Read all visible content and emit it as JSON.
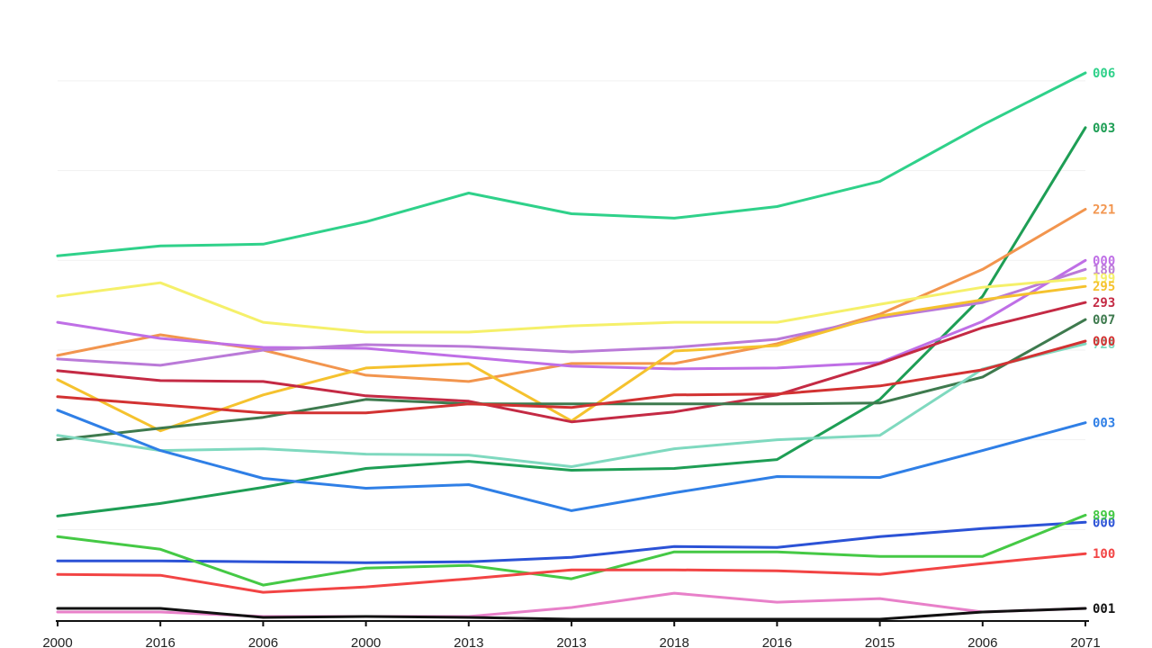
{
  "chart_data": {
    "type": "line",
    "title": "",
    "xlabel": "",
    "ylabel": "",
    "categories": [
      "2000",
      "2016",
      "2006",
      "2000",
      "2013",
      "2013",
      "2018",
      "2016",
      "2015",
      "2006",
      "2071"
    ],
    "ylim": [
      0,
      620
    ],
    "grid": true,
    "legend": "none (labels at line ends)",
    "series": [
      {
        "color": "#2fd18a",
        "end_label": "006",
        "values": [
          405,
          416,
          418,
          443,
          475,
          452,
          447,
          460,
          488,
          551,
          609
        ]
      },
      {
        "color": "#1e9e55",
        "end_label": "003",
        "values": [
          115,
          129,
          147,
          168,
          176,
          166,
          168,
          178,
          245,
          360,
          548
        ]
      },
      {
        "color": "#f2954e",
        "end_label": "221",
        "values": [
          294,
          317,
          300,
          272,
          265,
          285,
          285,
          307,
          340,
          390,
          457
        ]
      },
      {
        "color": "#bf6fe6",
        "end_label": "000",
        "values": [
          331,
          313,
          303,
          302,
          292,
          282,
          279,
          280,
          286,
          332,
          400
        ]
      },
      {
        "color": "#ba7ad8",
        "end_label": "180",
        "values": [
          290,
          283,
          300,
          306,
          304,
          298,
          303,
          312,
          336,
          353,
          390
        ]
      },
      {
        "color": "#f5f06a",
        "end_label": "199",
        "values": [
          360,
          375,
          331,
          320,
          320,
          327,
          331,
          331,
          351,
          370,
          380
        ]
      },
      {
        "color": "#f5c22e",
        "end_label": "295",
        "values": [
          267,
          210,
          250,
          280,
          285,
          221,
          299,
          305,
          338,
          356,
          371
        ]
      },
      {
        "color": "#c42a44",
        "end_label": "293",
        "values": [
          277,
          266,
          265,
          249,
          243,
          220,
          231,
          250,
          285,
          325,
          353
        ]
      },
      {
        "color": "#3e7a4e",
        "end_label": "007",
        "values": [
          200,
          213,
          225,
          245,
          240,
          240,
          240,
          240,
          241,
          270,
          334
        ]
      },
      {
        "color": "#7fd9bf",
        "end_label": "728",
        "values": [
          205,
          188,
          190,
          184,
          183,
          170,
          190,
          200,
          205,
          279,
          307
        ]
      },
      {
        "color": "#d23232",
        "end_label": "000",
        "values": [
          248,
          239,
          230,
          230,
          240,
          236,
          250,
          251,
          260,
          278,
          310
        ]
      },
      {
        "color": "#2f7fe6",
        "end_label": "003",
        "values": [
          233,
          188,
          157,
          146,
          150,
          121,
          141,
          159,
          158,
          188,
          219
        ]
      },
      {
        "color": "#2b52d6",
        "end_label": "000",
        "values": [
          65,
          65,
          64,
          63,
          64,
          69,
          81,
          80,
          92,
          101,
          108
        ]
      },
      {
        "color": "#45c945",
        "end_label": "899",
        "values": [
          92,
          78,
          38,
          57,
          60,
          45,
          75,
          75,
          70,
          70,
          116
        ]
      },
      {
        "color": "#f24444",
        "end_label": "100",
        "values": [
          50,
          49,
          30,
          36,
          45,
          55,
          55,
          54,
          50,
          62,
          73
        ]
      },
      {
        "color": "#e880c9",
        "end_label": "",
        "values": [
          8,
          8,
          3,
          3,
          3,
          13,
          29,
          19,
          23,
          8,
          12
        ]
      },
      {
        "color": "#111111",
        "end_label": "001",
        "values": [
          12,
          12,
          2,
          3,
          2,
          0,
          0,
          0,
          0,
          8,
          12
        ]
      }
    ]
  }
}
